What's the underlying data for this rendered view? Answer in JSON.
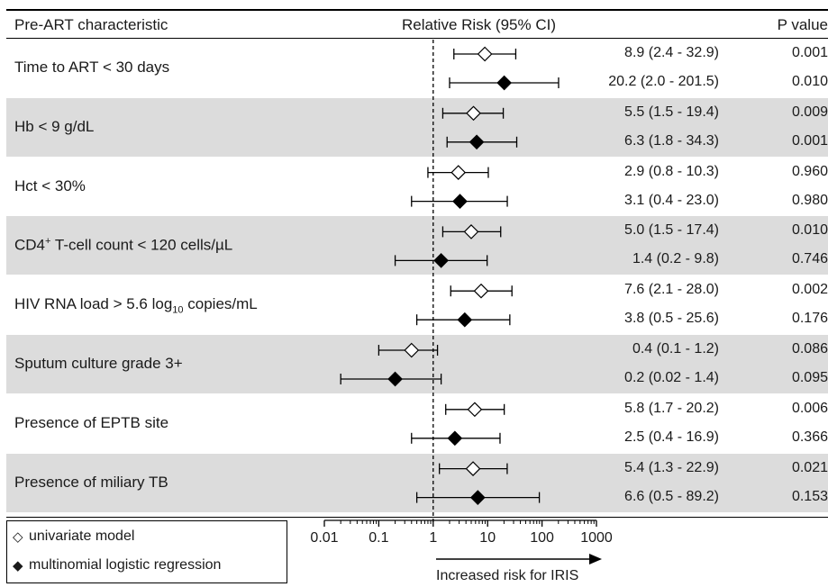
{
  "header": {
    "characteristic": "Pre-ART characteristic",
    "rr": "Relative Risk (95% CI)",
    "p": "P value"
  },
  "chart_data": {
    "type": "forest",
    "xscale": "log",
    "xlim": [
      0.01,
      1000
    ],
    "reference_line": 1,
    "xticks": [
      "0.01",
      "0.1",
      "1",
      "10",
      "100",
      "1000"
    ],
    "xtick_values": [
      0.01,
      0.1,
      1,
      10,
      100,
      1000
    ],
    "xaxis_note": "Increased risk for IRIS",
    "legend": [
      {
        "name": "univariate model",
        "marker": "open-diamond"
      },
      {
        "name": "multinomial logistic regression",
        "marker": "filled-diamond"
      }
    ],
    "groups": [
      {
        "label": "Time to ART < 30 days",
        "shaded": false,
        "rows": [
          {
            "model": "univariate",
            "rr": 8.9,
            "lo": 2.4,
            "hi": 32.9,
            "text": "8.9 (2.4 - 32.9)",
            "p": "0.001"
          },
          {
            "model": "multinomial",
            "rr": 20.2,
            "lo": 2.0,
            "hi": 201.5,
            "text": "20.2 (2.0 - 201.5)",
            "p": "0.010"
          }
        ]
      },
      {
        "label": "Hb < 9 g/dL",
        "shaded": true,
        "rows": [
          {
            "model": "univariate",
            "rr": 5.5,
            "lo": 1.5,
            "hi": 19.4,
            "text": "5.5 (1.5 - 19.4)",
            "p": "0.009"
          },
          {
            "model": "multinomial",
            "rr": 6.3,
            "lo": 1.8,
            "hi": 34.3,
            "text": "6.3 (1.8 - 34.3)",
            "p": "0.001"
          }
        ]
      },
      {
        "label": "Hct < 30%",
        "shaded": false,
        "rows": [
          {
            "model": "univariate",
            "rr": 2.9,
            "lo": 0.8,
            "hi": 10.3,
            "text": "2.9 (0.8 - 10.3)",
            "p": "0.960"
          },
          {
            "model": "multinomial",
            "rr": 3.1,
            "lo": 0.4,
            "hi": 23.0,
            "text": "3.1 (0.4 - 23.0)",
            "p": "0.980"
          }
        ]
      },
      {
        "label_pre": "CD4",
        "label_sup": "+",
        "label_post": " T-cell count < 120 cells/µL",
        "shaded": true,
        "rows": [
          {
            "model": "univariate",
            "rr": 5.0,
            "lo": 1.5,
            "hi": 17.4,
            "text": "5.0 (1.5 - 17.4)",
            "p": "0.010"
          },
          {
            "model": "multinomial",
            "rr": 1.4,
            "lo": 0.2,
            "hi": 9.8,
            "text": "1.4 (0.2 - 9.8)",
            "p": "0.746"
          }
        ]
      },
      {
        "label_pre": "HIV RNA load > 5.6 log",
        "label_sub": "10",
        "label_post": " copies/mL",
        "shaded": false,
        "rows": [
          {
            "model": "univariate",
            "rr": 7.6,
            "lo": 2.1,
            "hi": 28.0,
            "text": "7.6 (2.1 - 28.0)",
            "p": "0.002"
          },
          {
            "model": "multinomial",
            "rr": 3.8,
            "lo": 0.5,
            "hi": 25.6,
            "text": "3.8 (0.5 - 25.6)",
            "p": "0.176"
          }
        ]
      },
      {
        "label": "Sputum culture grade 3+",
        "shaded": true,
        "rows": [
          {
            "model": "univariate",
            "rr": 0.4,
            "lo": 0.1,
            "hi": 1.2,
            "text": "0.4 (0.1 - 1.2)",
            "p": "0.086"
          },
          {
            "model": "multinomial",
            "rr": 0.2,
            "lo": 0.02,
            "hi": 1.4,
            "text": "0.2 (0.02 - 1.4)",
            "p": "0.095"
          }
        ]
      },
      {
        "label": "Presence of EPTB site",
        "shaded": false,
        "rows": [
          {
            "model": "univariate",
            "rr": 5.8,
            "lo": 1.7,
            "hi": 20.2,
            "text": "5.8 (1.7 - 20.2)",
            "p": "0.006"
          },
          {
            "model": "multinomial",
            "rr": 2.5,
            "lo": 0.4,
            "hi": 16.9,
            "text": "2.5 (0.4 - 16.9)",
            "p": "0.366"
          }
        ]
      },
      {
        "label": "Presence of miliary TB",
        "shaded": true,
        "rows": [
          {
            "model": "univariate",
            "rr": 5.4,
            "lo": 1.3,
            "hi": 22.9,
            "text": "5.4 (1.3 - 22.9)",
            "p": "0.021"
          },
          {
            "model": "multinomial",
            "rr": 6.6,
            "lo": 0.5,
            "hi": 89.2,
            "text": "6.6 (0.5 - 89.2)",
            "p": "0.153"
          }
        ]
      }
    ]
  }
}
